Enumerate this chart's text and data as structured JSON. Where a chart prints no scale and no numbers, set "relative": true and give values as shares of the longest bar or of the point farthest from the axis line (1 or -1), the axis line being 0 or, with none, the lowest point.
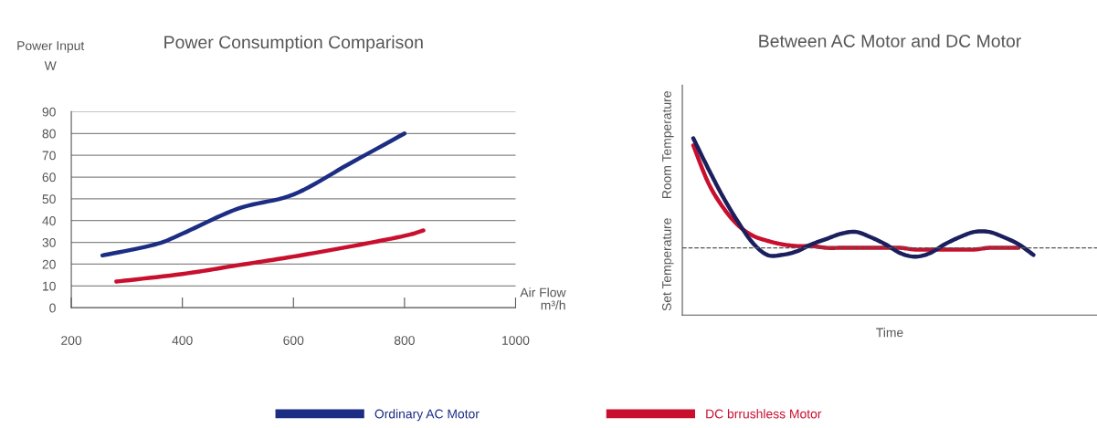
{
  "chart_data": [
    {
      "type": "line",
      "title": "Power Consumption Comparison",
      "xlabel": "Air Flow\nm³/h",
      "ylabel": "Power Input\nW",
      "xlim": [
        200,
        1000
      ],
      "xticks": [
        200,
        400,
        600,
        800,
        1000
      ],
      "ylim": [
        0,
        90
      ],
      "yticks": [
        0,
        10,
        20,
        30,
        40,
        50,
        60,
        70,
        80,
        90
      ],
      "grid": "y",
      "legend": "bottom",
      "marker": "none",
      "line_style": "solid",
      "series": [
        {
          "name": "Ordinary AC Motor",
          "color": "#1c2d84",
          "x": [
            256,
            350,
            400,
            500,
            600,
            700,
            800
          ],
          "values": [
            24,
            29,
            34,
            45.5,
            52,
            66,
            80
          ]
        },
        {
          "name": "DC brrushless Motor",
          "color": "#c8102e",
          "x": [
            281,
            400,
            500,
            600,
            700,
            800,
            834
          ],
          "values": [
            12,
            15.5,
            19.5,
            23.5,
            28,
            33,
            35.5
          ]
        }
      ]
    },
    {
      "type": "line",
      "title": "Between AC Motor and DC Motor",
      "xlabel": "Time",
      "ylabel": "Room Temperature",
      "relative": true,
      "marker": "none",
      "line_style": "solid",
      "categories": [
        null,
        null,
        null,
        null,
        null,
        null,
        null,
        null,
        null,
        null,
        null,
        null,
        null,
        null,
        null,
        null,
        null,
        null,
        null,
        null,
        null,
        null,
        null,
        null
      ],
      "ref_lines": [
        {
          "axis": "y",
          "value": 0.38,
          "label": "Set Temperature",
          "color": "#555555",
          "line_style": "dashed"
        }
      ],
      "series": [
        {
          "color": "#c8102e",
          "values": [
            0.96,
            0.75,
            0.61,
            0.51,
            0.45,
            0.42,
            0.4,
            0.39,
            0.39,
            0.38,
            0.38,
            0.38,
            0.38,
            0.38,
            0.38,
            0.37,
            0.37,
            0.37,
            0.37,
            0.37,
            0.38,
            0.38,
            0.38,
            null
          ]
        },
        {
          "color": "#1b1f5e",
          "values": [
            1.0,
            0.83,
            0.67,
            0.53,
            0.41,
            0.34,
            0.34,
            0.36,
            0.4,
            0.43,
            0.46,
            0.47,
            0.44,
            0.4,
            0.35,
            0.33,
            0.35,
            0.4,
            0.44,
            0.47,
            0.47,
            0.44,
            0.4,
            0.34
          ]
        }
      ]
    }
  ]
}
